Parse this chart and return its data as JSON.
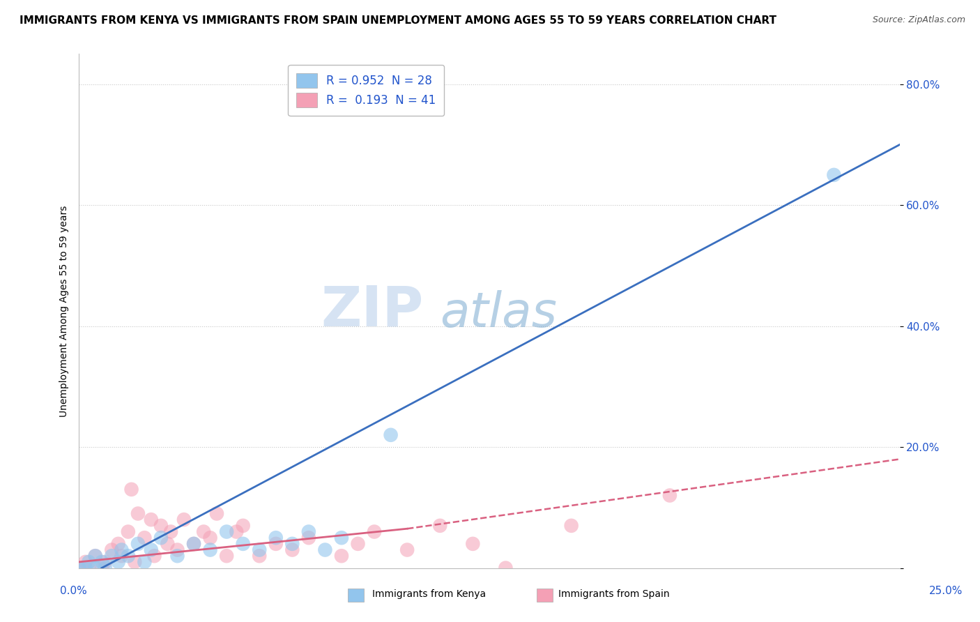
{
  "title": "IMMIGRANTS FROM KENYA VS IMMIGRANTS FROM SPAIN UNEMPLOYMENT AMONG AGES 55 TO 59 YEARS CORRELATION CHART",
  "source": "Source: ZipAtlas.com",
  "ylabel": "Unemployment Among Ages 55 to 59 years",
  "xlim": [
    0.0,
    0.25
  ],
  "ylim": [
    0.0,
    0.85
  ],
  "yticks": [
    0.0,
    0.2,
    0.4,
    0.6,
    0.8
  ],
  "ytick_labels": [
    "",
    "20.0%",
    "40.0%",
    "60.0%",
    "80.0%"
  ],
  "kenya_R": 0.952,
  "kenya_N": 28,
  "spain_R": 0.193,
  "spain_N": 41,
  "kenya_color": "#92C5ED",
  "spain_color": "#F4A0B5",
  "kenya_line_color": "#3A6FBF",
  "spain_line_color": "#D96080",
  "kenya_line": [
    [
      0.0,
      -0.02
    ],
    [
      0.25,
      0.7
    ]
  ],
  "spain_line_solid": [
    [
      0.0,
      0.01
    ],
    [
      0.1,
      0.065
    ]
  ],
  "spain_line_dashed": [
    [
      0.1,
      0.065
    ],
    [
      0.25,
      0.18
    ]
  ],
  "kenya_scatter": [
    [
      0.0,
      0.0
    ],
    [
      0.002,
      0.0
    ],
    [
      0.003,
      0.01
    ],
    [
      0.005,
      0.0
    ],
    [
      0.005,
      0.02
    ],
    [
      0.007,
      0.01
    ],
    [
      0.008,
      0.0
    ],
    [
      0.01,
      0.02
    ],
    [
      0.012,
      0.01
    ],
    [
      0.013,
      0.03
    ],
    [
      0.015,
      0.02
    ],
    [
      0.018,
      0.04
    ],
    [
      0.02,
      0.01
    ],
    [
      0.022,
      0.03
    ],
    [
      0.025,
      0.05
    ],
    [
      0.03,
      0.02
    ],
    [
      0.035,
      0.04
    ],
    [
      0.04,
      0.03
    ],
    [
      0.045,
      0.06
    ],
    [
      0.05,
      0.04
    ],
    [
      0.055,
      0.03
    ],
    [
      0.06,
      0.05
    ],
    [
      0.065,
      0.04
    ],
    [
      0.07,
      0.06
    ],
    [
      0.075,
      0.03
    ],
    [
      0.08,
      0.05
    ],
    [
      0.095,
      0.22
    ],
    [
      0.23,
      0.65
    ]
  ],
  "spain_scatter": [
    [
      0.0,
      0.0
    ],
    [
      0.002,
      0.01
    ],
    [
      0.003,
      0.0
    ],
    [
      0.005,
      0.02
    ],
    [
      0.007,
      0.0
    ],
    [
      0.008,
      0.01
    ],
    [
      0.01,
      0.03
    ],
    [
      0.012,
      0.04
    ],
    [
      0.013,
      0.02
    ],
    [
      0.015,
      0.06
    ],
    [
      0.016,
      0.13
    ],
    [
      0.017,
      0.01
    ],
    [
      0.018,
      0.09
    ],
    [
      0.02,
      0.05
    ],
    [
      0.022,
      0.08
    ],
    [
      0.023,
      0.02
    ],
    [
      0.025,
      0.07
    ],
    [
      0.027,
      0.04
    ],
    [
      0.028,
      0.06
    ],
    [
      0.03,
      0.03
    ],
    [
      0.032,
      0.08
    ],
    [
      0.035,
      0.04
    ],
    [
      0.038,
      0.06
    ],
    [
      0.04,
      0.05
    ],
    [
      0.042,
      0.09
    ],
    [
      0.045,
      0.02
    ],
    [
      0.048,
      0.06
    ],
    [
      0.05,
      0.07
    ],
    [
      0.055,
      0.02
    ],
    [
      0.06,
      0.04
    ],
    [
      0.065,
      0.03
    ],
    [
      0.07,
      0.05
    ],
    [
      0.08,
      0.02
    ],
    [
      0.085,
      0.04
    ],
    [
      0.09,
      0.06
    ],
    [
      0.1,
      0.03
    ],
    [
      0.11,
      0.07
    ],
    [
      0.12,
      0.04
    ],
    [
      0.13,
      0.0
    ],
    [
      0.15,
      0.07
    ],
    [
      0.18,
      0.12
    ]
  ],
  "watermark_zip": "ZIP",
  "watermark_atlas": "atlas",
  "title_fontsize": 11,
  "source_fontsize": 9,
  "label_fontsize": 10,
  "tick_fontsize": 11,
  "legend_fontsize": 12,
  "background_color": "#FFFFFF",
  "grid_color": "#C8C8C8"
}
